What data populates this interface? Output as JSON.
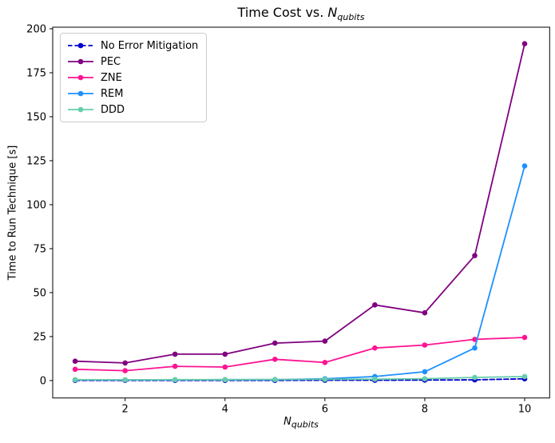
{
  "chart_data": {
    "type": "line",
    "title": {
      "prefix": "Time Cost vs. ",
      "var": "N",
      "subscript": "qubits"
    },
    "xlabel": {
      "var": "N",
      "subscript": "qubits"
    },
    "ylabel": "Time to Run Technique [s]",
    "x": [
      1,
      2,
      3,
      4,
      5,
      6,
      7,
      8,
      9,
      10
    ],
    "xtick_values": [
      2,
      4,
      6,
      8,
      10
    ],
    "xtick_labels": [
      "2",
      "4",
      "6",
      "8",
      "10"
    ],
    "ytick_values": [
      0,
      25,
      50,
      75,
      100,
      125,
      150,
      175,
      200
    ],
    "ytick_labels": [
      "0",
      "25",
      "50",
      "75",
      "100",
      "125",
      "150",
      "175",
      "200"
    ],
    "xlim": [
      0.55,
      10.5
    ],
    "ylim": [
      -9.9,
      200.9
    ],
    "grid": false,
    "legend_position": "upper left",
    "axes_color": "#000000",
    "background_color": "#ffffff",
    "series": [
      {
        "name": "No Error Mitigation",
        "color": "#0000CD",
        "linestyle": "dashed",
        "marker": "circle",
        "values": [
          0.1,
          0.1,
          0.1,
          0.1,
          0.1,
          0.2,
          0.2,
          0.3,
          0.4,
          1.0
        ]
      },
      {
        "name": "PEC",
        "color": "#800080",
        "linestyle": "solid",
        "marker": "circle",
        "values": [
          11,
          10,
          15,
          15,
          21.3,
          22.4,
          43,
          38.5,
          71,
          191.5
        ]
      },
      {
        "name": "ZNE",
        "color": "#FF1493",
        "linestyle": "solid",
        "marker": "circle",
        "values": [
          6.4,
          5.6,
          8.1,
          7.7,
          12.1,
          10.3,
          18.5,
          20.2,
          23.4,
          24.5
        ]
      },
      {
        "name": "REM",
        "color": "#1E90FF",
        "linestyle": "solid",
        "marker": "circle",
        "values": [
          0.4,
          0.4,
          0.4,
          0.5,
          0.5,
          1.0,
          2.3,
          5.0,
          18.5,
          122
        ]
      },
      {
        "name": "DDD",
        "color": "#66CDAA",
        "linestyle": "solid",
        "marker": "circle",
        "values": [
          0.5,
          0.4,
          0.5,
          0.5,
          0.6,
          0.7,
          0.8,
          1.0,
          1.8,
          2.3
        ]
      }
    ]
  }
}
